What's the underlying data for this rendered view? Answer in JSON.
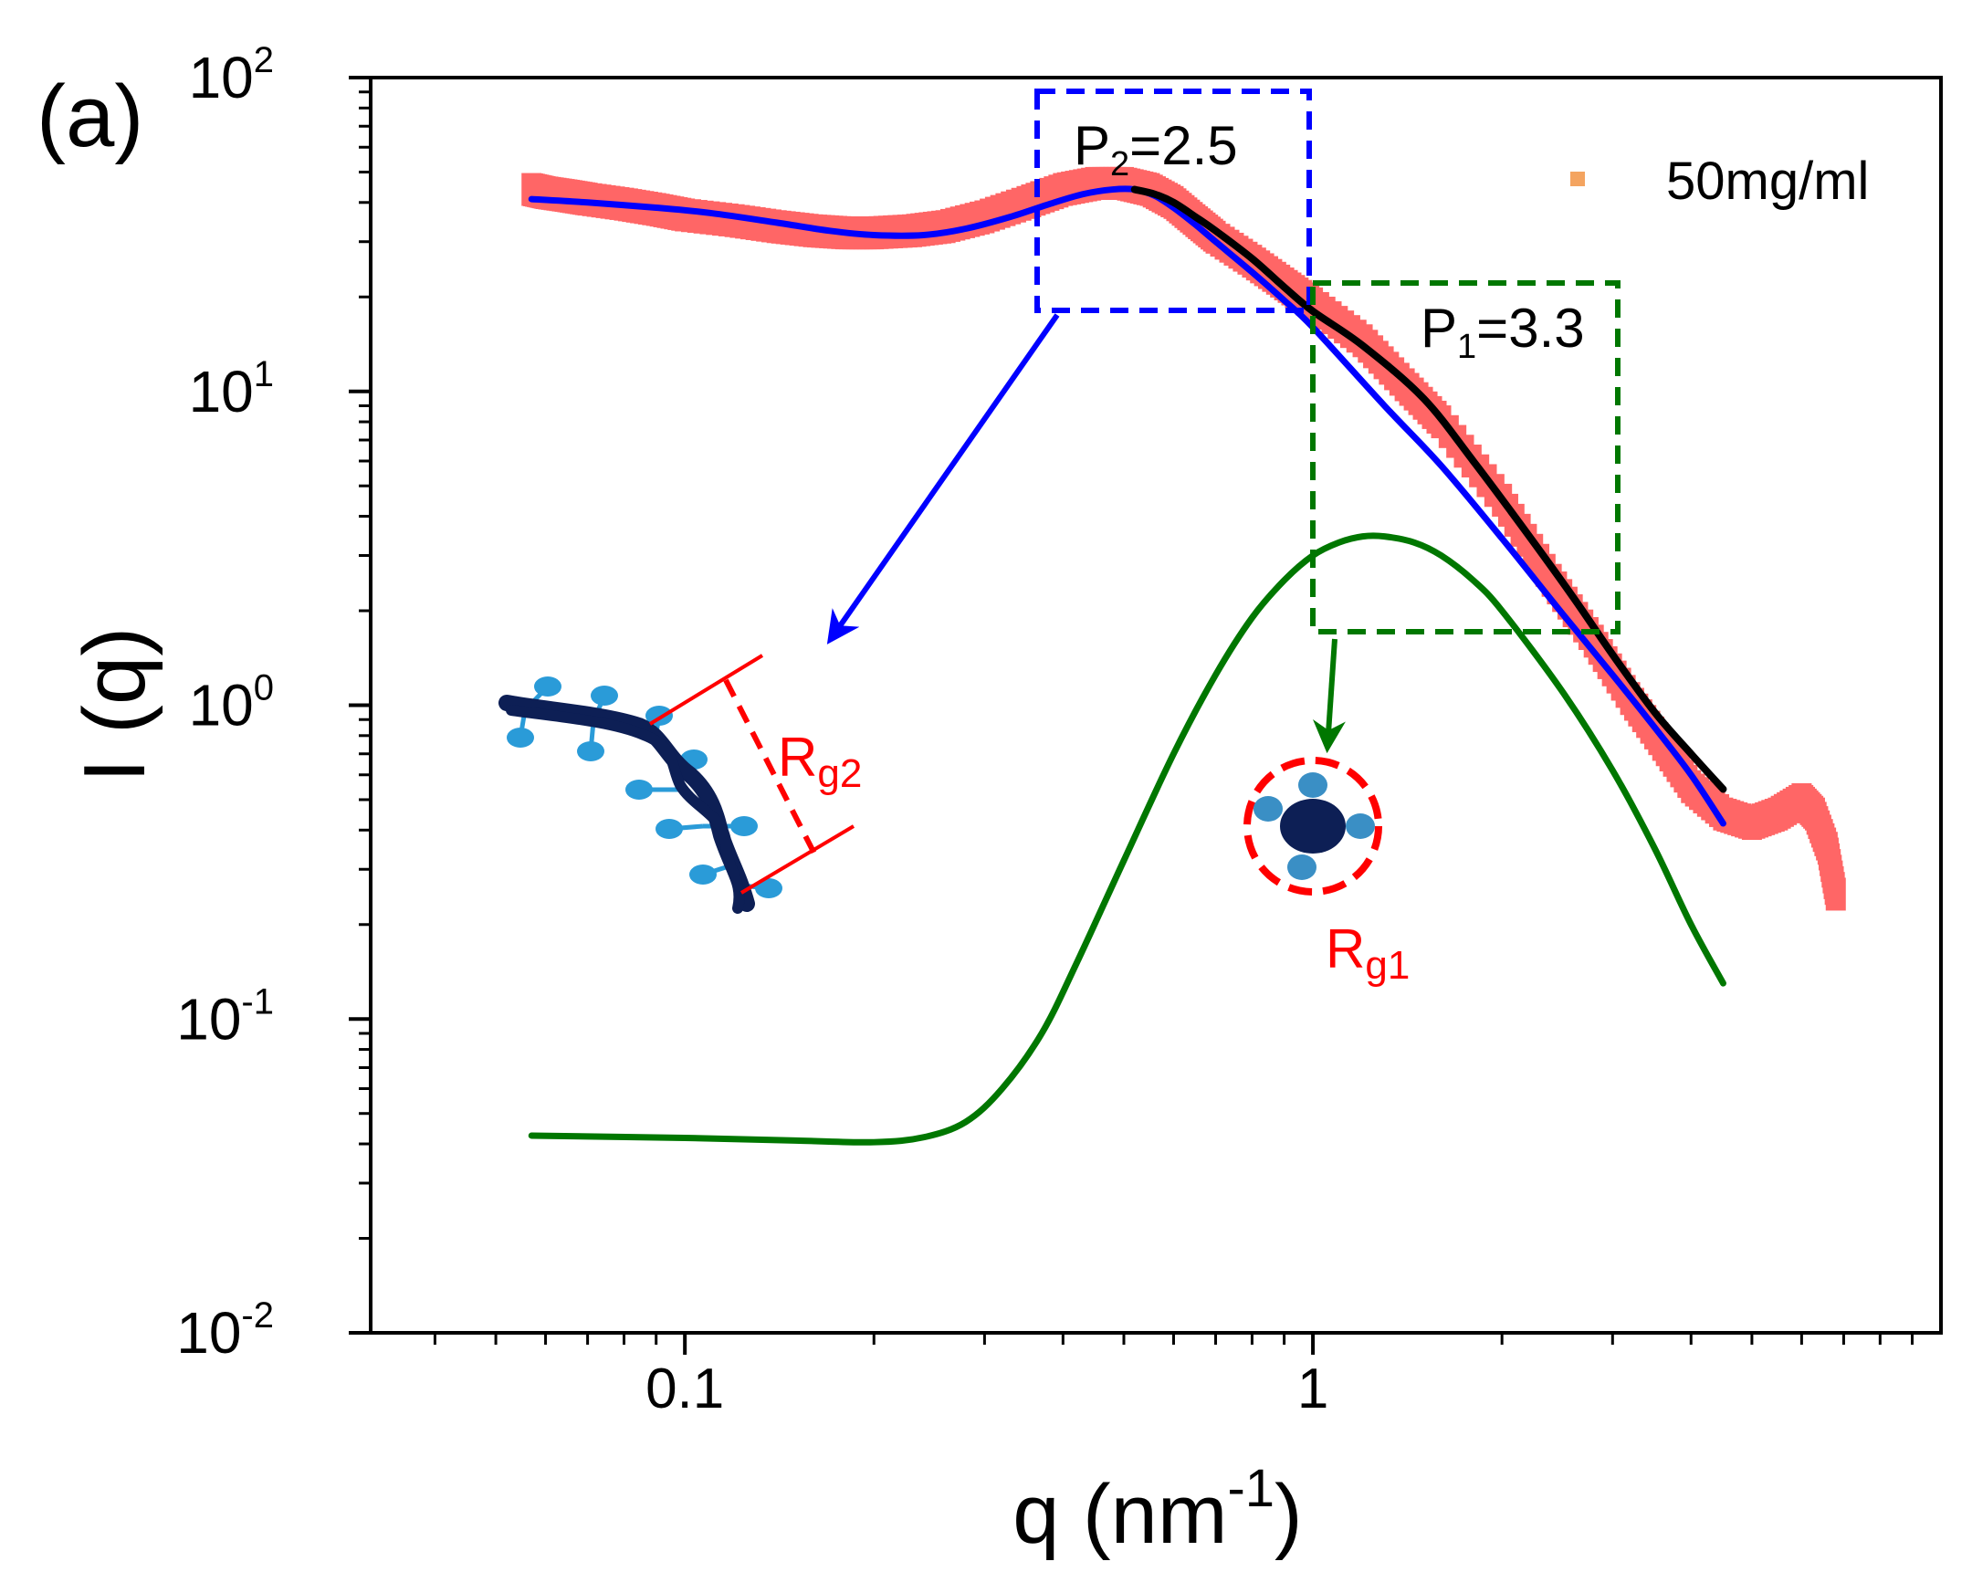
{
  "colors": {
    "data": "#ff6666",
    "blue_fit": "#0000ff",
    "black_fit": "#000000",
    "green_fit": "#007700",
    "annotation_red": "#ff0000",
    "legend_marker": "#f4a460",
    "chain_dark": "#0d1f55",
    "chain_light": "#2a9bd8"
  },
  "chart_data": {
    "type": "line",
    "panel_label": "(a)",
    "xlabel": "q (nm",
    "xlabel_sup": "-1",
    "xlabel_close": ")",
    "ylabel": "I (q)",
    "xscale": "log",
    "yscale": "log",
    "xlim": [
      0.0316,
      10
    ],
    "ylim": [
      0.01,
      100
    ],
    "x_tick_labels": [
      {
        "value": 0.1,
        "label": "0.1"
      },
      {
        "value": 1,
        "label": "1"
      }
    ],
    "y_tick_labels": [
      {
        "value": 100,
        "base": "10",
        "exp": "2"
      },
      {
        "value": 10,
        "base": "10",
        "exp": "1"
      },
      {
        "value": 1,
        "base": "10",
        "exp": "0"
      },
      {
        "value": 0.1,
        "base": "10",
        "exp": "-1"
      },
      {
        "value": 0.01,
        "base": "10",
        "exp": "-2"
      }
    ],
    "legend": {
      "label": "50mg/ml",
      "position": "top-right"
    },
    "series": [
      {
        "name": "50mg/ml",
        "style": "markers",
        "x": [
          0.057,
          0.06,
          0.065,
          0.07,
          0.08,
          0.09,
          0.1,
          0.12,
          0.14,
          0.16,
          0.18,
          0.2,
          0.23,
          0.26,
          0.3,
          0.35,
          0.4,
          0.45,
          0.5,
          0.55,
          0.6,
          0.65,
          0.7,
          0.8,
          0.9,
          1.0,
          1.2,
          1.4,
          1.6,
          2.0,
          2.4,
          2.8,
          3.2,
          3.6,
          4.0,
          4.5,
          5.0,
          5.5,
          6.0,
          6.3,
          6.6,
          6.8
        ],
        "y": [
          44,
          43,
          42,
          41,
          39.5,
          38,
          36.5,
          35,
          33.5,
          32.5,
          32,
          32,
          32.5,
          33.5,
          36,
          40,
          44,
          46,
          46,
          44,
          40,
          35,
          31,
          26,
          22,
          19,
          14.5,
          10.5,
          8,
          4.5,
          2.5,
          1.6,
          1.05,
          0.75,
          0.55,
          0.45,
          0.42,
          0.45,
          0.5,
          0.45,
          0.35,
          0.25
        ]
      },
      {
        "name": "blue fit",
        "style": "line",
        "x": [
          0.057,
          0.07,
          0.09,
          0.11,
          0.14,
          0.17,
          0.2,
          0.24,
          0.28,
          0.33,
          0.38,
          0.43,
          0.48,
          0.52,
          0.56,
          0.6,
          0.65,
          0.7,
          0.8,
          0.9,
          1.0,
          1.3,
          1.6,
          2.0,
          2.5,
          3.0,
          3.5,
          4.0,
          4.5
        ],
        "y": [
          41,
          40,
          38.5,
          37,
          34.5,
          32.5,
          31.5,
          31.5,
          33,
          36,
          39.5,
          42.5,
          44,
          44,
          42,
          38.5,
          34,
          30,
          24,
          19.5,
          16,
          9,
          5.8,
          3.4,
          1.95,
          1.25,
          0.85,
          0.6,
          0.42
        ]
      },
      {
        "name": "black fit",
        "style": "line",
        "x": [
          0.52,
          0.56,
          0.6,
          0.65,
          0.7,
          0.8,
          0.9,
          1.0,
          1.2,
          1.5,
          1.8,
          2.2,
          2.6,
          3.0,
          3.5,
          4.0,
          4.5
        ],
        "y": [
          44,
          42.5,
          40,
          36,
          32.5,
          26.5,
          21.5,
          18,
          14,
          9.5,
          6,
          3.5,
          2.2,
          1.45,
          0.95,
          0.7,
          0.54
        ]
      },
      {
        "name": "green fit",
        "style": "line",
        "x": [
          0.057,
          0.1,
          0.15,
          0.2,
          0.24,
          0.28,
          0.32,
          0.37,
          0.42,
          0.5,
          0.6,
          0.7,
          0.8,
          0.9,
          1.0,
          1.1,
          1.2,
          1.3,
          1.45,
          1.6,
          1.8,
          2.0,
          2.5,
          3.0,
          3.5,
          4.0,
          4.5
        ],
        "y": [
          0.0425,
          0.0418,
          0.041,
          0.0405,
          0.042,
          0.047,
          0.06,
          0.09,
          0.15,
          0.32,
          0.7,
          1.25,
          1.9,
          2.5,
          3.0,
          3.3,
          3.45,
          3.45,
          3.3,
          3.0,
          2.5,
          2.0,
          1.1,
          0.62,
          0.35,
          0.2,
          0.13
        ]
      }
    ],
    "annotations": [
      {
        "name": "p2-box",
        "text_main": "P",
        "text_sub": "2",
        "text_rest": "=2.5",
        "color": "blue",
        "x_range": [
          0.36,
          0.9
        ],
        "y_range": [
          18,
          80
        ]
      },
      {
        "name": "p1-box",
        "text_main": "P",
        "text_sub": "1",
        "text_rest": "=3.3",
        "color": "green",
        "x_range": [
          0.95,
          2.9
        ],
        "y_range": [
          1.75,
          22
        ]
      },
      {
        "name": "rg2",
        "text_main": "R",
        "text_sub": "g2"
      },
      {
        "name": "rg1",
        "text_main": "R",
        "text_sub": "g1"
      }
    ]
  }
}
